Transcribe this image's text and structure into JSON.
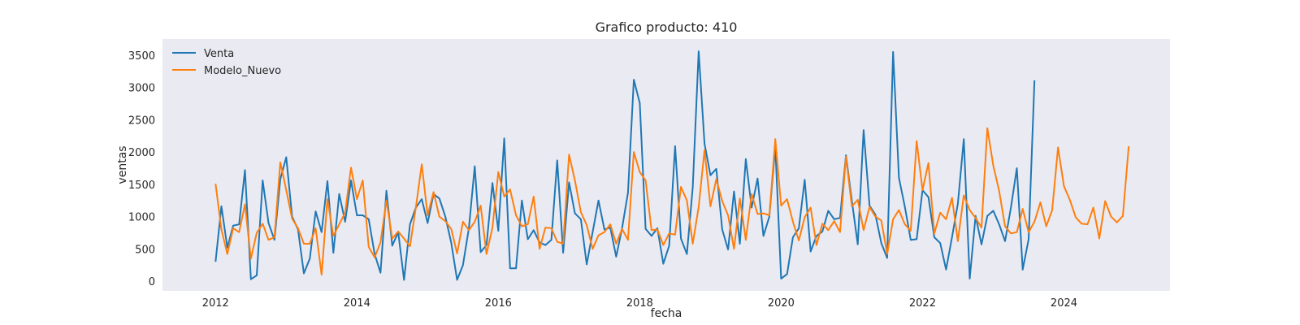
{
  "chart_data": {
    "type": "line",
    "title": "Grafico producto: 410",
    "xlabel": "fecha",
    "ylabel": "ventas",
    "xlim": [
      "2011-04-01",
      "2025-07-01"
    ],
    "ylim": [
      -150,
      3750
    ],
    "xticks": [
      "2012",
      "2014",
      "2016",
      "2018",
      "2020",
      "2022",
      "2024"
    ],
    "yticks": [
      0,
      500,
      1000,
      1500,
      2000,
      2500,
      3000,
      3500
    ],
    "grid": false,
    "legend_position": "top-left",
    "series": [
      {
        "name": "Venta",
        "color": "#1f77b4",
        "start": "2012-01",
        "values": [
          300,
          1160,
          520,
          860,
          880,
          1720,
          30,
          90,
          1560,
          900,
          640,
          1580,
          1920,
          1000,
          800,
          120,
          350,
          1080,
          760,
          1550,
          440,
          1350,
          920,
          1560,
          1020,
          1020,
          960,
          420,
          130,
          1400,
          550,
          760,
          20,
          880,
          1140,
          1270,
          900,
          1350,
          1280,
          1000,
          600,
          20,
          250,
          820,
          1780,
          450,
          560,
          1520,
          780,
          2210,
          200,
          200,
          1250,
          650,
          790,
          600,
          560,
          640,
          1870,
          440,
          1530,
          1050,
          960,
          260,
          760,
          1250,
          800,
          830,
          380,
          820,
          1370,
          3120,
          2760,
          810,
          700,
          820,
          270,
          550,
          2090,
          660,
          420,
          1450,
          3560,
          2130,
          1640,
          1740,
          800,
          490,
          1390,
          580,
          1890,
          1140,
          1590,
          700,
          1000,
          2080,
          40,
          110,
          680,
          820,
          1570,
          460,
          700,
          770,
          1090,
          960,
          980,
          1950,
          1250,
          570,
          2340,
          1170,
          1030,
          590,
          360,
          3550,
          1600,
          1150,
          640,
          650,
          1410,
          1300,
          680,
          590,
          180,
          680,
          1200,
          2200,
          40,
          1010,
          570,
          1010,
          1090,
          880,
          620,
          1140,
          1750,
          180,
          650,
          3110
        ]
      },
      {
        "name": "Modelo_Nuevo",
        "color": "#ff7f0e",
        "start": "2012-01",
        "values": [
          1510,
          800,
          420,
          820,
          760,
          1190,
          350,
          750,
          890,
          640,
          680,
          1840,
          1410,
          970,
          820,
          580,
          580,
          820,
          100,
          1270,
          700,
          880,
          1060,
          1760,
          1270,
          1560,
          530,
          370,
          600,
          1250,
          660,
          770,
          660,
          540,
          1140,
          1810,
          1020,
          1380,
          1000,
          930,
          810,
          430,
          920,
          790,
          920,
          1170,
          420,
          830,
          1690,
          1310,
          1420,
          1020,
          850,
          880,
          1310,
          500,
          830,
          820,
          610,
          580,
          1960,
          1560,
          1070,
          870,
          500,
          710,
          760,
          880,
          580,
          810,
          640,
          2000,
          1690,
          1560,
          790,
          800,
          560,
          740,
          720,
          1460,
          1250,
          580,
          1150,
          2030,
          1160,
          1580,
          1240,
          1020,
          500,
          1280,
          640,
          1350,
          1040,
          1050,
          1020,
          2200,
          1170,
          1270,
          920,
          630,
          990,
          1140,
          560,
          890,
          790,
          930,
          760,
          1930,
          1160,
          1260,
          790,
          1150,
          1000,
          940,
          420,
          960,
          1100,
          880,
          780,
          2170,
          1410,
          1830,
          740,
          1060,
          960,
          1290,
          620,
          1330,
          1100,
          980,
          830,
          2370,
          1790,
          1400,
          850,
          740,
          760,
          1120,
          760,
          920,
          1220,
          850,
          1100,
          2070,
          1470,
          1260,
          990,
          890,
          880,
          1140,
          660,
          1240,
          1000,
          910,
          1010,
          2090
        ]
      }
    ]
  }
}
